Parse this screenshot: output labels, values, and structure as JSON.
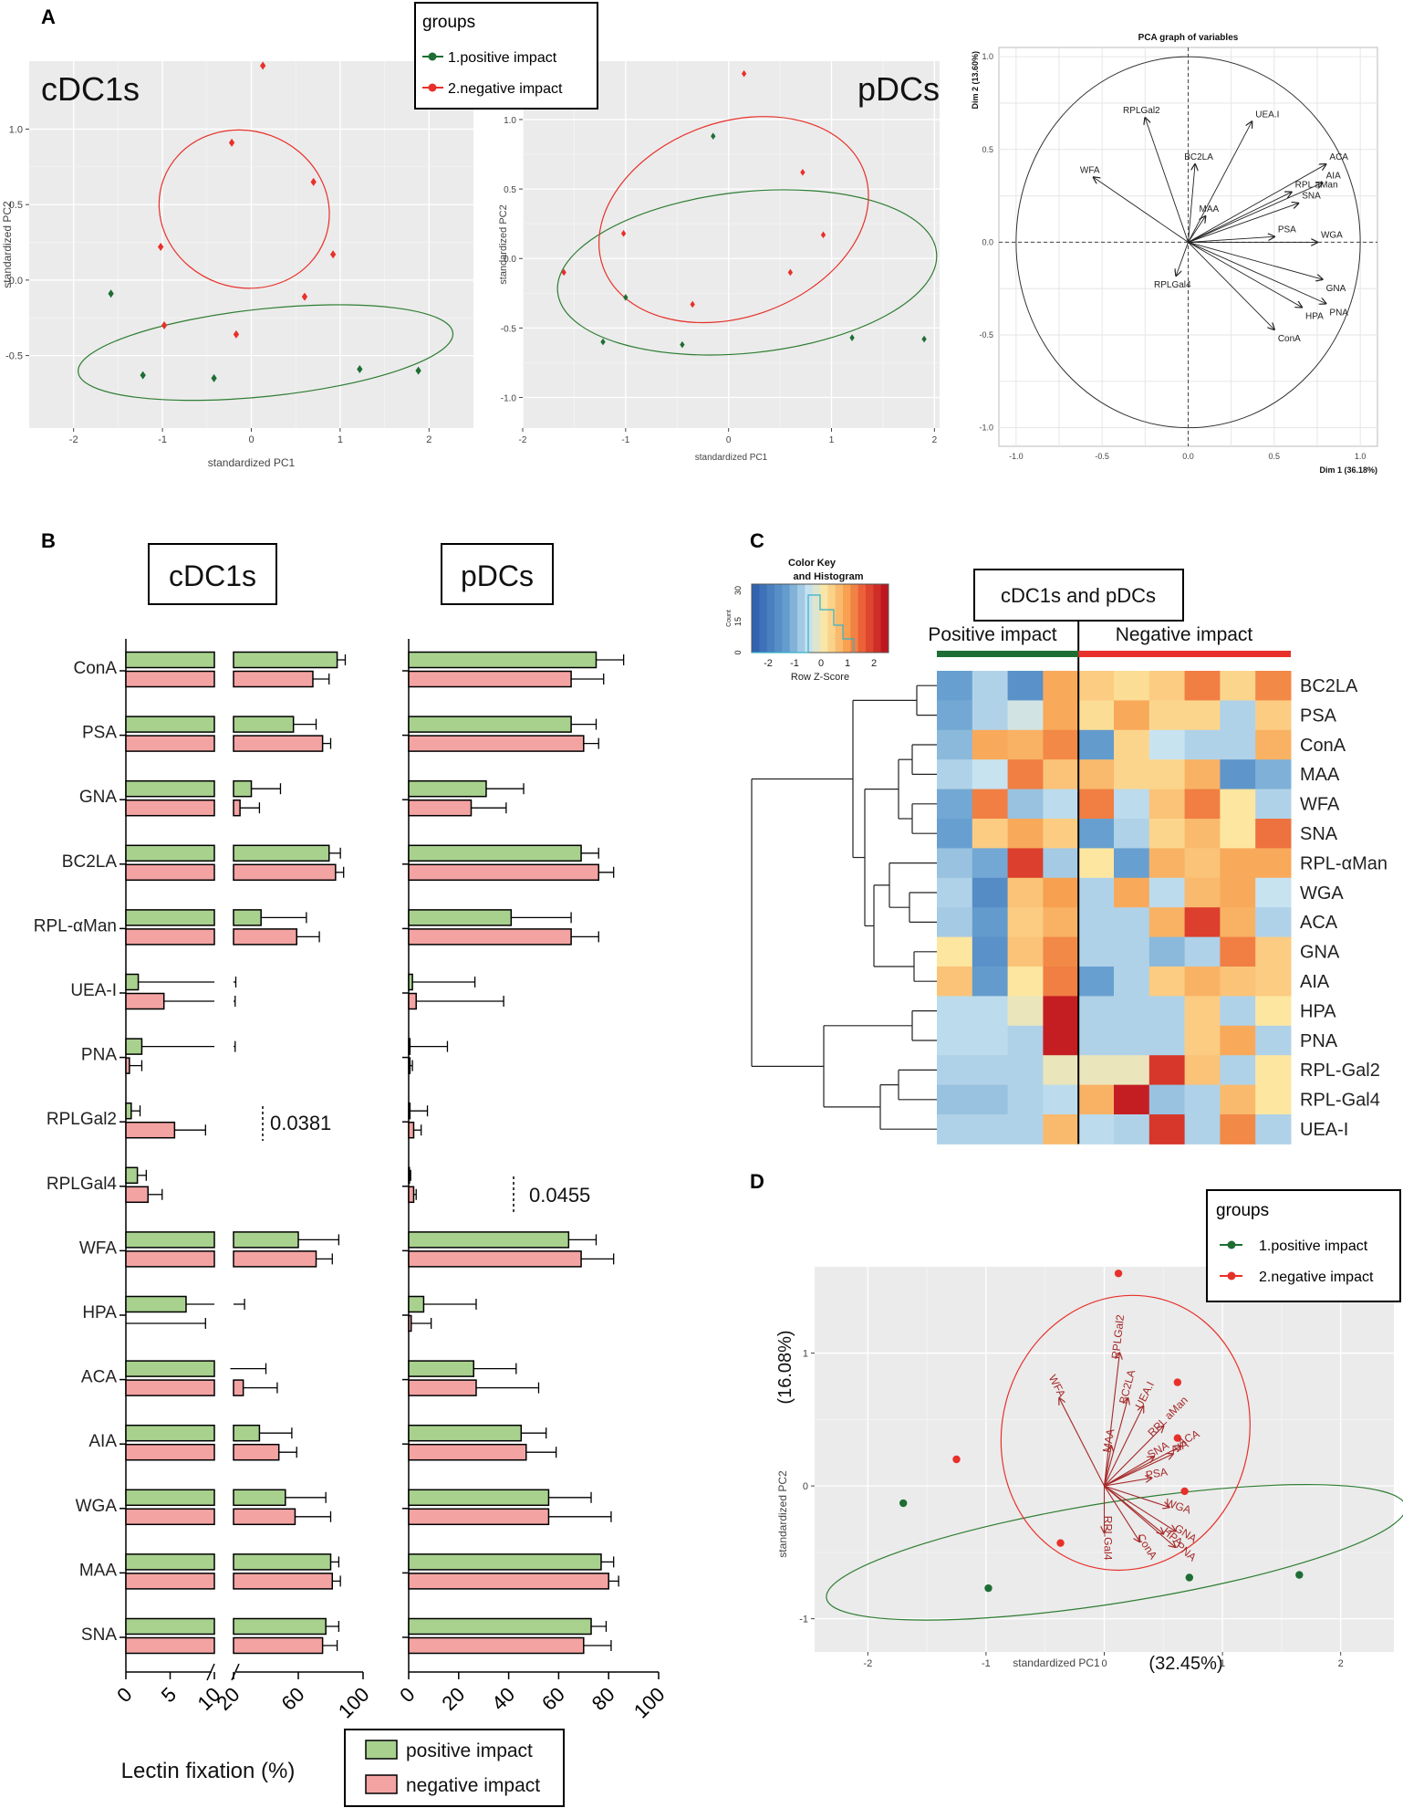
{
  "panels": {
    "A": "A",
    "B": "B",
    "C": "C",
    "D": "D"
  },
  "colors": {
    "positive": "#1e6e34",
    "negative": "#e8302a",
    "green_bar": "#a9d18e",
    "red_bar": "#f4a3a3",
    "plot_bg": "#ebebeb"
  },
  "legend_groups": {
    "title": "groups",
    "pos": "1.positive impact",
    "neg": "2.negative impact"
  },
  "chart_data": [
    {
      "id": "A1",
      "type": "scatter",
      "label": "cDC1s",
      "xlabel": "standardized PC1",
      "ylabel": "standardized PC2",
      "xlim": [
        -2.5,
        2.5
      ],
      "ylim": [
        -0.98,
        1.45
      ],
      "xticks": [
        -2,
        -1,
        0,
        1,
        2
      ],
      "yticks": [
        -0.5,
        0,
        0.5,
        1.0
      ],
      "ytick_labels": [
        "-0.5",
        "0.0",
        "0.5",
        "1.0"
      ],
      "series": [
        {
          "name": "1.positive impact",
          "x": [
            -1.58,
            -1.22,
            -0.42,
            1.22,
            1.88
          ],
          "y": [
            -0.09,
            -0.63,
            -0.65,
            -0.59,
            -0.6
          ]
        },
        {
          "name": "2.negative impact",
          "x": [
            0.13,
            -0.22,
            0.7,
            -1.02,
            0.92,
            -0.98,
            0.6,
            -0.17
          ],
          "y": [
            1.42,
            0.91,
            0.65,
            0.22,
            0.17,
            -0.3,
            -0.11,
            -0.36
          ]
        }
      ],
      "ellipses": [
        {
          "group": "positive",
          "cx": 0.16,
          "cy": -0.48,
          "rx": 2.12,
          "ry": 0.29,
          "angle": 6
        },
        {
          "group": "negative",
          "cx": -0.08,
          "cy": 0.47,
          "rx": 0.88,
          "ry": 0.57,
          "angle": 70
        }
      ]
    },
    {
      "id": "A2",
      "type": "scatter",
      "label": "pDCs",
      "xlabel": "standardized PC1",
      "ylabel": "standardized PC2",
      "xlim": [
        -2.0,
        2.05
      ],
      "ylim": [
        -1.22,
        1.42
      ],
      "xticks": [
        -2,
        -1,
        0,
        1,
        2
      ],
      "yticks": [
        -1.0,
        -0.5,
        0,
        0.5,
        1.0
      ],
      "ytick_labels": [
        "-1.0",
        "-0.5",
        "0.0",
        "0.5",
        "1.0"
      ],
      "series": [
        {
          "name": "1.positive impact",
          "x": [
            -0.15,
            -1.0,
            -1.22,
            -0.45,
            1.2,
            1.9
          ],
          "y": [
            0.88,
            -0.28,
            -0.6,
            -0.62,
            -0.57,
            -0.58
          ]
        },
        {
          "name": "2.negative impact",
          "x": [
            0.15,
            0.72,
            -1.02,
            0.92,
            -1.6,
            0.6,
            -0.35
          ],
          "y": [
            1.33,
            0.62,
            0.18,
            0.17,
            -0.1,
            -0.1,
            -0.33
          ]
        }
      ],
      "ellipses": [
        {
          "group": "positive",
          "cx": 0.18,
          "cy": -0.1,
          "rx": 1.85,
          "ry": 0.58,
          "angle": 6
        },
        {
          "group": "negative",
          "cx": 0.05,
          "cy": 0.28,
          "rx": 1.35,
          "ry": 0.7,
          "angle": 20
        }
      ]
    },
    {
      "id": "A3",
      "type": "pca-variables",
      "title": "PCA graph of variables",
      "xlabel": "Dim 1 (36.18%)",
      "ylabel": "Dim 2 (13.60%)",
      "xlim": [
        -1.1,
        1.1
      ],
      "ylim": [
        -1.1,
        1.05
      ],
      "ticks": [
        -1.0,
        -0.5,
        0.0,
        0.5,
        1.0
      ],
      "tick_labels": [
        "-1.0",
        "-0.5",
        "0.0",
        "0.5",
        "1.0"
      ],
      "vectors": [
        {
          "name": "RPLGal2",
          "x": -0.25,
          "y": 0.67
        },
        {
          "name": "BC2LA",
          "x": 0.04,
          "y": 0.42
        },
        {
          "name": "UEA.I",
          "x": 0.37,
          "y": 0.65
        },
        {
          "name": "ACA",
          "x": 0.8,
          "y": 0.42
        },
        {
          "name": "RPL aMan",
          "x": 0.6,
          "y": 0.27
        },
        {
          "name": "AIA",
          "x": 0.78,
          "y": 0.32
        },
        {
          "name": "SNA",
          "x": 0.64,
          "y": 0.21
        },
        {
          "name": "WFA",
          "x": -0.55,
          "y": 0.35
        },
        {
          "name": "MAA",
          "x": 0.1,
          "y": 0.14
        },
        {
          "name": "PSA",
          "x": 0.5,
          "y": 0.03
        },
        {
          "name": "WGA",
          "x": 0.75,
          "y": 0.0
        },
        {
          "name": "GNA",
          "x": 0.78,
          "y": -0.2
        },
        {
          "name": "PNA",
          "x": 0.8,
          "y": -0.33
        },
        {
          "name": "HPA",
          "x": 0.66,
          "y": -0.35
        },
        {
          "name": "ConA",
          "x": 0.5,
          "y": -0.47
        },
        {
          "name": "RPLGal4",
          "x": -0.07,
          "y": -0.18
        }
      ]
    },
    {
      "id": "B",
      "type": "bar",
      "orientation": "horizontal",
      "categories": [
        "ConA",
        "PSA",
        "GNA",
        "BC2LA",
        "RPL-αMan",
        "UEA-I",
        "PNA",
        "RPLGal2",
        "RPLGal4",
        "WFA",
        "HPA",
        "ACA",
        "AIA",
        "WGA",
        "MAA",
        "SNA"
      ],
      "xlabel": "Lectin fixation (%)",
      "cdc1s": {
        "label": "cDC1s",
        "xticks_low": [
          "0",
          "5",
          "10"
        ],
        "xticks_high": [
          "20",
          "60",
          "100"
        ],
        "positive": [
          84,
          57,
          31,
          79,
          37,
          1.4,
          1.8,
          0.6,
          1.3,
          60,
          6.8,
          18,
          36,
          52,
          80,
          77
        ],
        "positive_err": [
          5,
          14,
          18,
          7,
          28,
          20,
          12,
          1,
          1,
          25,
          20,
          22,
          20,
          25,
          5,
          8
        ],
        "negative": [
          69,
          75,
          24,
          83,
          59,
          4.3,
          0.4,
          5.5,
          2.5,
          71,
          0,
          26,
          48,
          58,
          81,
          75
        ],
        "negative_err": [
          10,
          5,
          12,
          5,
          14,
          16,
          1.4,
          3.5,
          1.6,
          10,
          9,
          21,
          11,
          22,
          5,
          9
        ],
        "annotation": "0.0381"
      },
      "pdcs": {
        "label": "pDCs",
        "xticks": [
          "0",
          "20",
          "40",
          "60",
          "80",
          "100"
        ],
        "positive": [
          75,
          65,
          31,
          69,
          41,
          1.5,
          0.5,
          0.5,
          0.3,
          64,
          6,
          26,
          45,
          56,
          77,
          73
        ],
        "positive_err": [
          11,
          10,
          15,
          7,
          24,
          25,
          15,
          7,
          0.5,
          11,
          21,
          17,
          10,
          17,
          5,
          6
        ],
        "negative": [
          65,
          70,
          25,
          76,
          65,
          3,
          0.5,
          2,
          2,
          69,
          1,
          27,
          47,
          56,
          80,
          70
        ],
        "negative_err": [
          13,
          6,
          14,
          6,
          11,
          35,
          1,
          3,
          1,
          13,
          8,
          25,
          12,
          25,
          4,
          11
        ],
        "annotation": "0.0455"
      },
      "legend": {
        "positive": "positive impact",
        "negative": "negative impact"
      }
    },
    {
      "id": "C",
      "type": "heatmap",
      "title": "cDC1s and pDCs",
      "group_labels": [
        "Positive impact",
        "Negative impact"
      ],
      "color_key": {
        "title": "Color Key",
        "subtitle": "and Histogram",
        "xlabel": "Row Z-Score",
        "ylabel": "Count",
        "xticks": [
          "-2",
          "-1",
          "0",
          "1",
          "2"
        ],
        "yticks": [
          "0",
          "15",
          "30"
        ]
      },
      "rows": [
        "BC2LA",
        "PSA",
        "ConA",
        "MAA",
        "WFA",
        "SNA",
        "RPL-αMan",
        "WGA",
        "ACA",
        "GNA",
        "AIA",
        "HPA",
        "PNA",
        "RPL-Gal2",
        "RPL-Gal4",
        "UEA-I"
      ],
      "n_positive": 4,
      "values": [
        [
          -1.2,
          -0.6,
          -1.5,
          0.9,
          0.5,
          0.3,
          0.5,
          1.3,
          0.4,
          1.2
        ],
        [
          -1.1,
          -0.6,
          -0.3,
          0.9,
          0.3,
          0.9,
          0.4,
          0.4,
          -0.6,
          0.5
        ],
        [
          -0.9,
          0.9,
          0.8,
          1.2,
          -1.3,
          0.4,
          -0.4,
          -0.6,
          -0.6,
          0.8
        ],
        [
          -0.6,
          -0.4,
          1.3,
          0.6,
          0.7,
          0.4,
          0.4,
          0.8,
          -1.4,
          -1.0
        ],
        [
          -1.1,
          1.3,
          -0.8,
          -0.5,
          1.3,
          -0.5,
          0.6,
          1.3,
          0.2,
          -0.6
        ],
        [
          -1.2,
          0.5,
          0.9,
          0.5,
          -1.2,
          -0.6,
          0.4,
          0.7,
          0.2,
          1.4
        ],
        [
          -0.8,
          -1.1,
          1.9,
          -0.7,
          0.2,
          -1.2,
          0.8,
          0.6,
          0.9,
          0.9
        ],
        [
          -0.6,
          -1.6,
          0.6,
          1.0,
          -0.6,
          0.9,
          -0.5,
          0.7,
          0.9,
          -0.4
        ],
        [
          -0.7,
          -1.3,
          0.5,
          0.8,
          -0.6,
          -0.6,
          0.8,
          1.9,
          0.8,
          -0.6
        ],
        [
          0.2,
          -1.5,
          0.6,
          1.2,
          -0.6,
          -0.6,
          -0.9,
          -0.6,
          1.3,
          0.5
        ],
        [
          0.6,
          -1.3,
          0.2,
          1.3,
          -1.2,
          -0.6,
          0.5,
          0.8,
          0.6,
          0.5
        ],
        [
          -0.5,
          -0.5,
          0.0,
          2.3,
          -0.6,
          -0.6,
          -0.6,
          0.5,
          -0.6,
          0.2
        ],
        [
          -0.5,
          -0.5,
          -0.6,
          2.3,
          -0.6,
          -0.6,
          -0.6,
          0.5,
          0.9,
          -0.6
        ],
        [
          -0.6,
          -0.6,
          -0.6,
          0.0,
          0.0,
          0.0,
          2.0,
          0.6,
          -0.6,
          0.2
        ],
        [
          -0.8,
          -0.8,
          -0.6,
          -0.5,
          0.8,
          2.3,
          -0.8,
          -0.6,
          0.7,
          0.2
        ],
        [
          -0.6,
          -0.6,
          -0.6,
          0.7,
          -0.5,
          -0.6,
          2.0,
          -0.6,
          1.2,
          -0.6
        ]
      ]
    },
    {
      "id": "D",
      "type": "biplot",
      "xlabel": "standardized PC1",
      "xlabel_pct": "(32.45%)",
      "ylabel": "standardized PC2",
      "ylabel_pct": "(16.08%)",
      "xlim": [
        -2.45,
        2.45
      ],
      "ylim": [
        -1.25,
        1.65
      ],
      "xticks": [
        -2,
        -1,
        0,
        1,
        2
      ],
      "yticks": [
        -1,
        0,
        1
      ],
      "series": [
        {
          "name": "1.positive impact",
          "x": [
            -1.7,
            -0.98,
            0.72,
            1.65
          ],
          "y": [
            -0.13,
            -0.77,
            -0.69,
            -0.67
          ]
        },
        {
          "name": "2.negative impact",
          "x": [
            0.12,
            0.62,
            -1.25,
            0.62,
            0.68,
            -0.37
          ],
          "y": [
            1.6,
            0.78,
            0.2,
            0.36,
            -0.04,
            -0.43
          ]
        }
      ],
      "ellipses": [
        {
          "group": "positive",
          "cx": 0.1,
          "cy": -0.5,
          "rx": 2.48,
          "ry": 0.38,
          "angle": 9
        },
        {
          "group": "negative",
          "cx": 0.18,
          "cy": 0.4,
          "rx": 1.17,
          "ry": 0.93,
          "angle": 75
        }
      ],
      "vectors": [
        {
          "name": "RPLGal2",
          "x": 0.13,
          "y": 1.0
        },
        {
          "name": "BC2LA",
          "x": 0.2,
          "y": 0.66
        },
        {
          "name": "UEA.I",
          "x": 0.33,
          "y": 0.6
        },
        {
          "name": "RPL aMan",
          "x": 0.5,
          "y": 0.45
        },
        {
          "name": "ACA",
          "x": 0.65,
          "y": 0.3
        },
        {
          "name": "AIA",
          "x": 0.58,
          "y": 0.24
        },
        {
          "name": "SNA",
          "x": 0.42,
          "y": 0.22
        },
        {
          "name": "WFA",
          "x": -0.38,
          "y": 0.66
        },
        {
          "name": "MAA",
          "x": 0.06,
          "y": 0.3
        },
        {
          "name": "PSA",
          "x": 0.4,
          "y": 0.06
        },
        {
          "name": "WGA",
          "x": 0.55,
          "y": -0.16
        },
        {
          "name": "GNA",
          "x": 0.6,
          "y": -0.34
        },
        {
          "name": "PNA",
          "x": 0.6,
          "y": -0.46
        },
        {
          "name": "HPA",
          "x": 0.5,
          "y": -0.36
        },
        {
          "name": "ConA",
          "x": 0.3,
          "y": -0.42
        },
        {
          "name": "RPLGal4",
          "x": 0.0,
          "y": -0.35
        }
      ]
    }
  ]
}
